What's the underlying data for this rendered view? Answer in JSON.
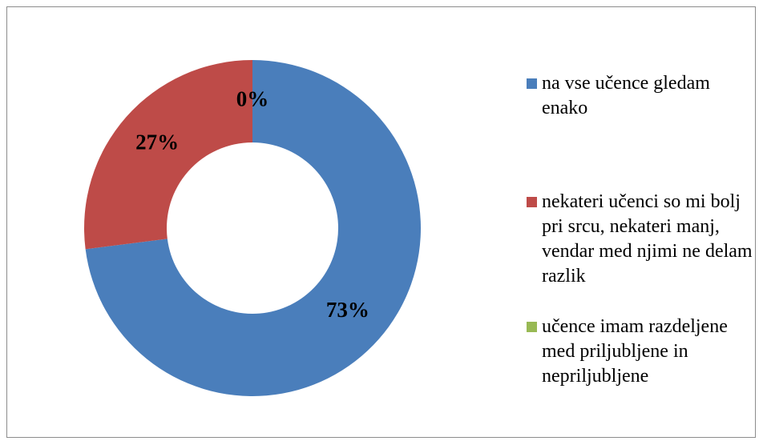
{
  "chart_data": {
    "type": "donut",
    "categories": [
      "na vse učence gledam enako",
      "nekateri učenci so mi bolj pri srcu, nekateri manj, vendar med njimi ne delam razlik",
      "učence imam razdeljene med priljubljene in nepriljubljene"
    ],
    "values": [
      73,
      27,
      0
    ],
    "value_labels": [
      "73%",
      "27%",
      "0%"
    ],
    "colors": [
      "#4a7ebb",
      "#be4b48",
      "#98b954"
    ],
    "legend": "right"
  }
}
